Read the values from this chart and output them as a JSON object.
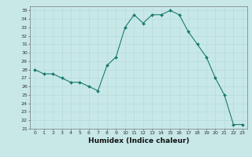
{
  "x": [
    0,
    1,
    2,
    3,
    4,
    5,
    6,
    7,
    8,
    9,
    10,
    11,
    12,
    13,
    14,
    15,
    16,
    17,
    18,
    19,
    20,
    21,
    22,
    23
  ],
  "y": [
    28,
    27.5,
    27.5,
    27,
    26.5,
    26.5,
    26,
    25.5,
    28.5,
    29.5,
    33,
    34.5,
    33.5,
    34.5,
    34.5,
    35,
    34.5,
    32.5,
    31,
    29.5,
    27,
    25,
    21.5,
    21.5
  ],
  "line_color": "#1a7a6e",
  "marker_color": "#1a7a6e",
  "bg_color": "#c8e8e8",
  "grid_color_major": "#b0d8d8",
  "grid_color_minor": "#b0d8d8",
  "xlabel": "Humidex (Indice chaleur)",
  "ylabel_ticks": [
    21,
    22,
    23,
    24,
    25,
    26,
    27,
    28,
    29,
    30,
    31,
    32,
    33,
    34,
    35
  ],
  "ylim": [
    21,
    35.5
  ],
  "xlim": [
    -0.5,
    23.5
  ]
}
